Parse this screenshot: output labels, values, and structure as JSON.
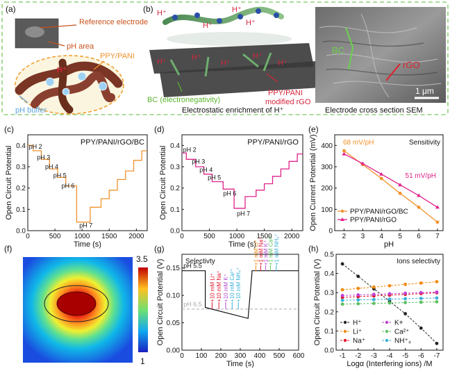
{
  "panel_labels": {
    "a": "(a)",
    "b": "(b)",
    "c": "(c)",
    "d": "(d)",
    "e": "(e)",
    "f": "(f)",
    "g": "(g)",
    "h": "(h)"
  },
  "panel_a": {
    "reference_electrode": "Reference electrode",
    "ph_area": "pH area",
    "ppy_pani": "PPY/PANI",
    "h_plus": "H⁺",
    "ph_buffer": "pH buffer"
  },
  "panel_b": {
    "h_plus": "H⁺",
    "bc_label": "BC (electronegativity)",
    "ppy_label_1": "PPY/PANI",
    "ppy_label_2": "modified rGO",
    "caption": "Electrostatic enrichment of H⁺",
    "sem_bc": "BC",
    "sem_rgo": "rGO",
    "scale_bar": "1 μm",
    "sem_caption": "Electrode cross section SEM"
  },
  "colors": {
    "dashed_border": "#8fd07a",
    "orange": "#f0922b",
    "magenta": "#e0218a",
    "brown_text": "#c8511b",
    "green_text": "#5cb531",
    "red_text": "#d6263c",
    "blue_text": "#5aa0d8"
  },
  "chart_data": [
    {
      "panel": "c",
      "type": "line",
      "title": "PPY/PANI/rGO/BC",
      "xlabel": "Time (s)",
      "ylabel": "Open Circuit Potential",
      "xlim": [
        0,
        2200
      ],
      "ylim": [
        0,
        0.45
      ],
      "xticks": [
        0,
        500,
        1000,
        1500,
        2000
      ],
      "yticks": [
        0.0,
        0.1,
        0.2,
        0.3,
        0.4
      ],
      "color": "orange",
      "x": [
        0,
        100,
        100,
        250,
        250,
        400,
        400,
        550,
        550,
        700,
        700,
        900,
        900,
        1150,
        1150,
        1350,
        1350,
        1500,
        1500,
        1650,
        1650,
        1800,
        1800,
        1950,
        1950,
        2100,
        2100,
        2200
      ],
      "y": [
        0.4,
        0.4,
        0.375,
        0.375,
        0.335,
        0.335,
        0.29,
        0.29,
        0.25,
        0.25,
        0.21,
        0.21,
        0.04,
        0.04,
        0.11,
        0.11,
        0.15,
        0.15,
        0.19,
        0.19,
        0.24,
        0.24,
        0.28,
        0.28,
        0.33,
        0.33,
        0.375,
        0.375
      ],
      "annotations": [
        {
          "text": "pH 2",
          "x": 20,
          "y": 0.385
        },
        {
          "text": "pH 3",
          "x": 170,
          "y": 0.335
        },
        {
          "text": "pH 4",
          "x": 320,
          "y": 0.29
        },
        {
          "text": "pH 5",
          "x": 470,
          "y": 0.25
        },
        {
          "text": "pH 6",
          "x": 620,
          "y": 0.2
        },
        {
          "text": "pH 7",
          "x": 950,
          "y": 0.015
        }
      ]
    },
    {
      "panel": "d",
      "type": "line",
      "title": "PPY/PANI/rGO",
      "xlabel": "Time (s)",
      "ylabel": "Open Circuit Potential",
      "xlim": [
        0,
        2200
      ],
      "ylim": [
        0,
        0.45
      ],
      "xticks": [
        0,
        500,
        1000,
        1500,
        2000
      ],
      "yticks": [
        0.0,
        0.1,
        0.2,
        0.3,
        0.4
      ],
      "color": "magenta",
      "x": [
        0,
        80,
        80,
        250,
        250,
        400,
        400,
        550,
        550,
        750,
        750,
        950,
        950,
        1150,
        1150,
        1350,
        1350,
        1500,
        1500,
        1650,
        1650,
        1800,
        1800,
        1950,
        1950,
        2100,
        2100,
        2200
      ],
      "y": [
        0.365,
        0.365,
        0.335,
        0.335,
        0.3,
        0.3,
        0.265,
        0.265,
        0.23,
        0.23,
        0.195,
        0.195,
        0.105,
        0.105,
        0.16,
        0.16,
        0.19,
        0.19,
        0.22,
        0.22,
        0.255,
        0.255,
        0.29,
        0.29,
        0.325,
        0.325,
        0.36,
        0.36
      ],
      "annotations": [
        {
          "text": "pH 2",
          "x": 20,
          "y": 0.37
        },
        {
          "text": "pH 3",
          "x": 180,
          "y": 0.315
        },
        {
          "text": "pH 4",
          "x": 320,
          "y": 0.275
        },
        {
          "text": "pH 5",
          "x": 470,
          "y": 0.24
        },
        {
          "text": "pH 6",
          "x": 750,
          "y": 0.165
        },
        {
          "text": "pH 7",
          "x": 1000,
          "y": 0.07
        }
      ]
    },
    {
      "panel": "e",
      "type": "line",
      "title": "Sensitivity",
      "xlabel": "pH",
      "ylabel": "Open Current Potential (mV)",
      "xlim": [
        1.5,
        7.3
      ],
      "ylim": [
        0,
        450
      ],
      "xticks": [
        2,
        3,
        4,
        5,
        6,
        7
      ],
      "yticks": [
        0,
        100,
        200,
        300,
        400
      ],
      "series": [
        {
          "name": "PPY/PANI/rGO/BC",
          "color": "orange",
          "marker": "circle",
          "x": [
            2,
            3,
            4,
            5,
            6,
            7
          ],
          "y": [
            375,
            310,
            245,
            175,
            110,
            40
          ]
        },
        {
          "name": "PPY/PANI/rGO",
          "color": "magenta",
          "marker": "triangle",
          "x": [
            2,
            3,
            4,
            5,
            6,
            7
          ],
          "y": [
            360,
            315,
            265,
            215,
            165,
            110
          ]
        }
      ],
      "annotations": [
        {
          "text": "68 mV/pH",
          "color": "orange"
        },
        {
          "text": "51 mV/pH",
          "color": "magenta"
        }
      ],
      "legend": "bottom-left"
    },
    {
      "panel": "f",
      "type": "heatmap",
      "colorbar_max": "3.5",
      "colorbar_min": "1"
    },
    {
      "panel": "g",
      "type": "line",
      "title": "Selectivty",
      "xlabel": "Time (s)",
      "ylabel": "Open Circuit Potential (V)",
      "xlim": [
        0,
        600
      ],
      "ylim": [
        0,
        0.175
      ],
      "xticks": [
        0,
        100,
        200,
        300,
        400,
        500,
        600
      ],
      "yticks": [
        0.0,
        0.05,
        0.1,
        0.15
      ],
      "x": [
        0,
        120,
        120,
        340,
        340,
        360,
        360,
        600
      ],
      "y": [
        0.145,
        0.145,
        0.078,
        0.058,
        0.058,
        0.14,
        0.145,
        0.145
      ],
      "baseline": 0.075,
      "labels": [
        {
          "text": "pH 5.5",
          "x": 8,
          "y": 0.15
        },
        {
          "text": "pH 6.5",
          "x": 8,
          "y": 0.08
        }
      ],
      "additions_1": [
        {
          "text": "+10 mM Li⁺",
          "x": 155,
          "color": "#e0152a"
        },
        {
          "text": "+10 mM Na⁺",
          "x": 190,
          "color": "#e0152a"
        },
        {
          "text": "+10 mM K⁺",
          "x": 225,
          "color": "#b04ad0"
        },
        {
          "text": "+10 mM Ca²⁺",
          "x": 258,
          "color": "#38b0d8"
        },
        {
          "text": "+10 mM NH₄⁺",
          "x": 290,
          "color": "#38b0d8"
        }
      ],
      "additions_2": [
        {
          "text": "+1 mM Li⁺",
          "x": 380,
          "color": "#f08a10"
        },
        {
          "text": "+1 mM Na⁺",
          "x": 405,
          "color": "#e0152a"
        },
        {
          "text": "+1 mM K⁺",
          "x": 430,
          "color": "#b04ad0"
        },
        {
          "text": "+1 mM Ca²⁺",
          "x": 455,
          "color": "#5cc060"
        },
        {
          "text": "+1 mM NH₄⁺",
          "x": 485,
          "color": "#38b0d8"
        }
      ]
    },
    {
      "panel": "h",
      "type": "scatter",
      "title": "Ions selectivty",
      "xlabel": "Logα (Interfering ions) /M",
      "ylabel": "Open Circuit Potential (V)",
      "xlim": [
        -0.6,
        -7.4
      ],
      "ylim": [
        0,
        0.5
      ],
      "xticks": [
        -1,
        -2,
        -3,
        -4,
        -5,
        -6,
        -7
      ],
      "yticks": [
        0.0,
        0.1,
        0.2,
        0.3,
        0.4,
        0.5
      ],
      "series": [
        {
          "name": "H⁺",
          "color": "#222222",
          "x": [
            -1,
            -2,
            -3,
            -4,
            -5,
            -6,
            -7
          ],
          "y": [
            0.45,
            0.385,
            0.32,
            0.255,
            0.19,
            0.115,
            0.035
          ]
        },
        {
          "name": "Li⁺",
          "color": "#f08a10",
          "x": [
            -1,
            -2,
            -3,
            -4,
            -5,
            -6,
            -7
          ],
          "y": [
            0.315,
            0.322,
            0.329,
            0.336,
            0.343,
            0.35,
            0.357
          ]
        },
        {
          "name": "Na⁺",
          "color": "#e0152a",
          "x": [
            -1,
            -2,
            -3,
            -4,
            -5,
            -6,
            -7
          ],
          "y": [
            0.275,
            0.279,
            0.283,
            0.287,
            0.291,
            0.295,
            0.299
          ]
        },
        {
          "name": "K+",
          "color": "#c040d0",
          "x": [
            -1,
            -2,
            -3,
            -4,
            -5,
            -6,
            -7
          ],
          "y": [
            0.285,
            0.288,
            0.291,
            0.294,
            0.297,
            0.3,
            0.303
          ]
        },
        {
          "name": "Ca²⁺",
          "color": "#5cc060",
          "x": [
            -1,
            -2,
            -3,
            -4,
            -5,
            -6,
            -7
          ],
          "y": [
            0.24,
            0.242,
            0.244,
            0.246,
            0.248,
            0.25,
            0.252
          ]
        },
        {
          "name": "NH⁺₄",
          "color": "#38b0d8",
          "x": [
            -1,
            -2,
            -3,
            -4,
            -5,
            -6,
            -7
          ],
          "y": [
            0.26,
            0.262,
            0.264,
            0.266,
            0.268,
            0.27,
            0.272
          ]
        }
      ],
      "legend": "bottom-left"
    }
  ]
}
